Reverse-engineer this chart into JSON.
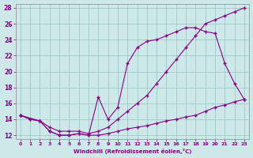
{
  "xlabel": "Windchill (Refroidissement éolien,°C)",
  "bg_color": "#cde8e8",
  "line_color": "#880088",
  "grid_color": "#a0c8c8",
  "xlim": [
    -0.5,
    23.5
  ],
  "ylim": [
    11.5,
    28.5
  ],
  "xticks": [
    0,
    1,
    2,
    3,
    4,
    5,
    6,
    7,
    8,
    9,
    10,
    11,
    12,
    13,
    14,
    15,
    16,
    17,
    18,
    19,
    20,
    21,
    22,
    23
  ],
  "yticks": [
    12,
    14,
    16,
    18,
    20,
    22,
    24,
    26,
    28
  ],
  "line1_x": [
    0,
    1,
    2,
    3,
    4,
    5,
    6,
    7,
    8,
    9,
    10,
    11,
    12,
    13,
    14,
    15,
    16,
    17,
    18,
    19,
    20,
    21,
    22,
    23
  ],
  "line1_y": [
    14.5,
    14.0,
    13.8,
    13.0,
    12.5,
    12.5,
    12.5,
    12.2,
    12.5,
    13.0,
    14.0,
    15.0,
    16.0,
    17.0,
    18.5,
    20.0,
    21.5,
    23.0,
    24.5,
    26.0,
    26.5,
    27.0,
    27.5,
    28.0
  ],
  "line2_x": [
    0,
    1,
    2,
    3,
    4,
    5,
    6,
    7,
    8,
    9,
    10,
    11,
    12,
    13,
    14,
    15,
    16,
    17,
    18,
    19,
    20,
    21,
    22,
    23
  ],
  "line2_y": [
    14.5,
    14.0,
    13.8,
    12.5,
    12.0,
    12.0,
    12.2,
    12.0,
    16.8,
    14.0,
    15.5,
    21.0,
    23.0,
    23.8,
    24.0,
    24.5,
    25.0,
    25.5,
    25.5,
    25.0,
    24.8,
    21.0,
    18.5,
    16.5
  ],
  "line3_x": [
    0,
    2,
    3,
    4,
    5,
    6,
    7,
    8,
    9,
    10,
    11,
    12,
    13,
    14,
    15,
    16,
    17,
    18,
    19,
    20,
    21,
    22,
    23
  ],
  "line3_y": [
    14.5,
    13.8,
    12.5,
    12.0,
    12.0,
    12.2,
    12.0,
    12.0,
    12.2,
    12.5,
    12.8,
    13.0,
    13.2,
    13.5,
    13.8,
    14.0,
    14.3,
    14.5,
    15.0,
    15.5,
    15.8,
    16.2,
    16.5
  ]
}
